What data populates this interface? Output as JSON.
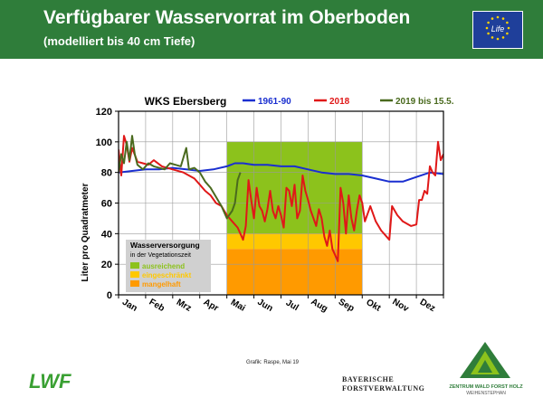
{
  "header": {
    "title": "Verfügbarer Wasservorrat im Oberboden",
    "subtitle": "(modelliert bis 40 cm Tiefe)",
    "background": "#2f7d3a",
    "eu_logo_text": "Life"
  },
  "footer": {
    "credit": "Grafik: Raspe, Mai 19",
    "lwf_logo": "LWF",
    "bayern_line1": "BAYERISCHE",
    "bayern_line2": "FORSTVERWALTUNG",
    "zentrum_line1": "ZENTRUM WALD FORST HOLZ",
    "zentrum_line2": "WEIHENSTEPHAN"
  },
  "chart_data": {
    "type": "line",
    "title": "WKS Ebersberg",
    "ylabel": "Liter pro Quadratmeter",
    "xlabel": "",
    "ylim": [
      0,
      120
    ],
    "yticks": [
      0,
      20,
      40,
      60,
      80,
      100,
      120
    ],
    "xlim": [
      0,
      12
    ],
    "months": [
      "Jan",
      "Feb",
      "Mrz",
      "Apr",
      "Mai",
      "Jun",
      "Jul",
      "Aug",
      "Sep",
      "Okt",
      "Nov",
      "Dez"
    ],
    "grid": true,
    "legend_position": "top",
    "series": [
      {
        "name": "1961-90",
        "color": "#1a2fd0",
        "x": [
          0.0,
          0.5,
          1.0,
          1.5,
          2.0,
          2.5,
          3.0,
          3.5,
          4.0,
          4.3,
          4.6,
          5.0,
          5.5,
          6.0,
          6.5,
          7.0,
          7.5,
          8.0,
          8.5,
          9.0,
          9.5,
          10.0,
          10.5,
          11.0,
          11.5,
          12.0
        ],
        "values": [
          80,
          81,
          82,
          82,
          83,
          82,
          81,
          82,
          84,
          86,
          86,
          85,
          85,
          84,
          84,
          82,
          80,
          79,
          79,
          78,
          76,
          74,
          74,
          77,
          80,
          79
        ]
      },
      {
        "name": "2018",
        "color": "#e01818",
        "x": [
          0.0,
          0.1,
          0.2,
          0.3,
          0.4,
          0.5,
          0.7,
          0.9,
          1.1,
          1.3,
          1.6,
          2.0,
          2.4,
          2.8,
          3.0,
          3.2,
          3.4,
          3.6,
          3.8,
          4.0,
          4.2,
          4.4,
          4.5,
          4.6,
          4.7,
          4.8,
          4.9,
          5.0,
          5.1,
          5.2,
          5.3,
          5.4,
          5.5,
          5.6,
          5.7,
          5.8,
          5.9,
          6.0,
          6.1,
          6.2,
          6.3,
          6.4,
          6.5,
          6.6,
          6.7,
          6.8,
          6.9,
          7.0,
          7.1,
          7.2,
          7.3,
          7.4,
          7.5,
          7.6,
          7.7,
          7.8,
          7.9,
          8.0,
          8.1,
          8.2,
          8.3,
          8.4,
          8.5,
          8.6,
          8.7,
          8.8,
          8.9,
          9.0,
          9.1,
          9.3,
          9.5,
          9.7,
          9.9,
          10.0,
          10.1,
          10.3,
          10.5,
          10.8,
          11.0,
          11.1,
          11.2,
          11.3,
          11.4,
          11.5,
          11.6,
          11.7,
          11.8,
          11.9,
          12.0
        ],
        "values": [
          95,
          78,
          104,
          98,
          87,
          96,
          87,
          86,
          85,
          88,
          84,
          82,
          80,
          76,
          72,
          68,
          65,
          60,
          58,
          52,
          48,
          44,
          40,
          36,
          45,
          75,
          62,
          50,
          70,
          58,
          55,
          48,
          56,
          68,
          55,
          50,
          58,
          52,
          44,
          70,
          68,
          58,
          72,
          50,
          55,
          78,
          68,
          62,
          55,
          50,
          45,
          56,
          50,
          38,
          32,
          42,
          30,
          26,
          22,
          70,
          60,
          40,
          65,
          50,
          42,
          55,
          65,
          60,
          48,
          58,
          48,
          42,
          38,
          36,
          58,
          52,
          48,
          45,
          46,
          62,
          62,
          68,
          66,
          84,
          80,
          78,
          100,
          88,
          92
        ]
      },
      {
        "name": "2019 bis 15.5.",
        "color": "#4a6a1e",
        "x": [
          0.0,
          0.1,
          0.2,
          0.3,
          0.4,
          0.5,
          0.6,
          0.7,
          0.9,
          1.1,
          1.3,
          1.5,
          1.7,
          1.9,
          2.1,
          2.3,
          2.5,
          2.6,
          2.8,
          3.0,
          3.2,
          3.4,
          3.6,
          3.8,
          4.0,
          4.2,
          4.3,
          4.4,
          4.5
        ],
        "values": [
          80,
          92,
          86,
          100,
          88,
          104,
          92,
          85,
          82,
          86,
          84,
          83,
          82,
          86,
          85,
          84,
          96,
          82,
          83,
          80,
          74,
          70,
          64,
          58,
          50,
          55,
          60,
          75,
          80
        ]
      }
    ],
    "zones": [
      {
        "label": "ausreichend",
        "color": "#8cc21c",
        "ymin": 40,
        "ymax": 100,
        "xmin": 4,
        "xmax": 9
      },
      {
        "label": "eingeschränkt",
        "color": "#ffc800",
        "ymin": 30,
        "ymax": 40,
        "xmin": 4,
        "xmax": 9
      },
      {
        "label": "mangelhaft",
        "color": "#ff9a00",
        "ymin": 0,
        "ymax": 30,
        "xmin": 4,
        "xmax": 9
      }
    ],
    "zone_legend": {
      "title": "Wasserversorgung",
      "subtitle": "in der Vegetationszeit",
      "position": "bottom-left"
    }
  }
}
